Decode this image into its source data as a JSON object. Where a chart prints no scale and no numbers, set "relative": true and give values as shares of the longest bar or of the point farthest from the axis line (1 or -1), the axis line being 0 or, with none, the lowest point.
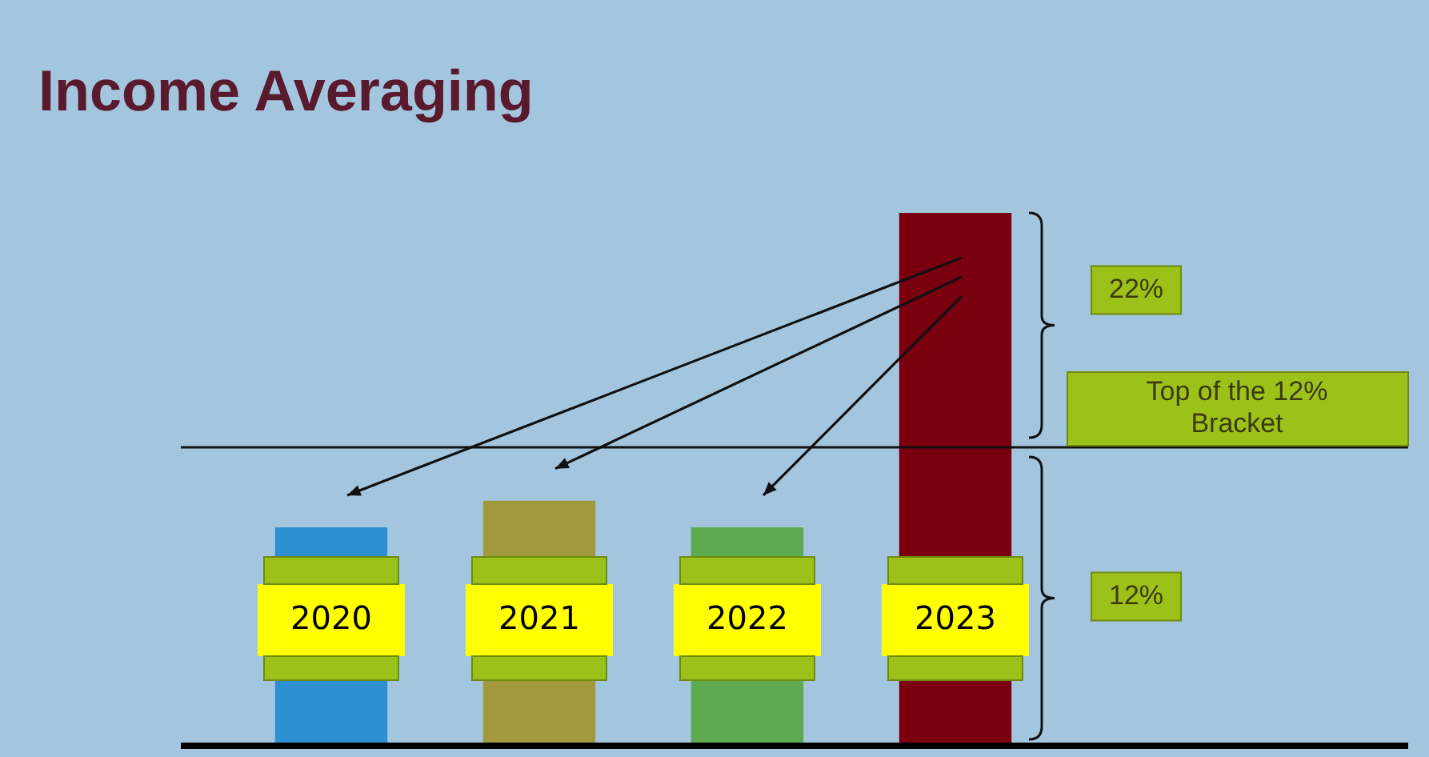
{
  "chart_data": {
    "type": "bar",
    "title": "Income Averaging",
    "relative": true,
    "categories": [
      "2020",
      "2021",
      "2022",
      "2023"
    ],
    "values": [
      0.41,
      0.46,
      0.41,
      1
    ],
    "colors": [
      "#2e8fd0",
      "#a09a3c",
      "#5faa50",
      "#7a0010"
    ],
    "ref_lines": [
      {
        "axis": "y",
        "value": 0.56,
        "label": "Top of the 12% Bracket",
        "color": "#111111"
      }
    ],
    "annotations": [
      "22%",
      "12%"
    ],
    "legend": false
  }
}
